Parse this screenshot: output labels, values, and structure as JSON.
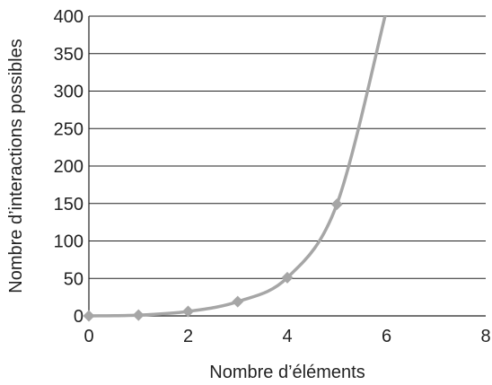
{
  "chart_data": {
    "type": "line",
    "title": "",
    "xlabel": "Nombre d’éléments",
    "ylabel": "Nombre d’interactions possibles",
    "xlim": [
      0,
      8
    ],
    "ylim": [
      0,
      400
    ],
    "x_ticks": [
      "0",
      "2",
      "4",
      "6",
      "8"
    ],
    "y_ticks": [
      "0",
      "50",
      "100",
      "150",
      "200",
      "250",
      "300",
      "350",
      "400"
    ],
    "grid": "horizontal",
    "series": [
      {
        "x": [
          0,
          1,
          2,
          3,
          4,
          5,
          6
        ],
        "values": [
          0,
          1,
          6,
          19,
          51,
          149,
          408
        ],
        "color": "#a6a6a6",
        "marker": "diamond",
        "smooth": true
      }
    ]
  }
}
